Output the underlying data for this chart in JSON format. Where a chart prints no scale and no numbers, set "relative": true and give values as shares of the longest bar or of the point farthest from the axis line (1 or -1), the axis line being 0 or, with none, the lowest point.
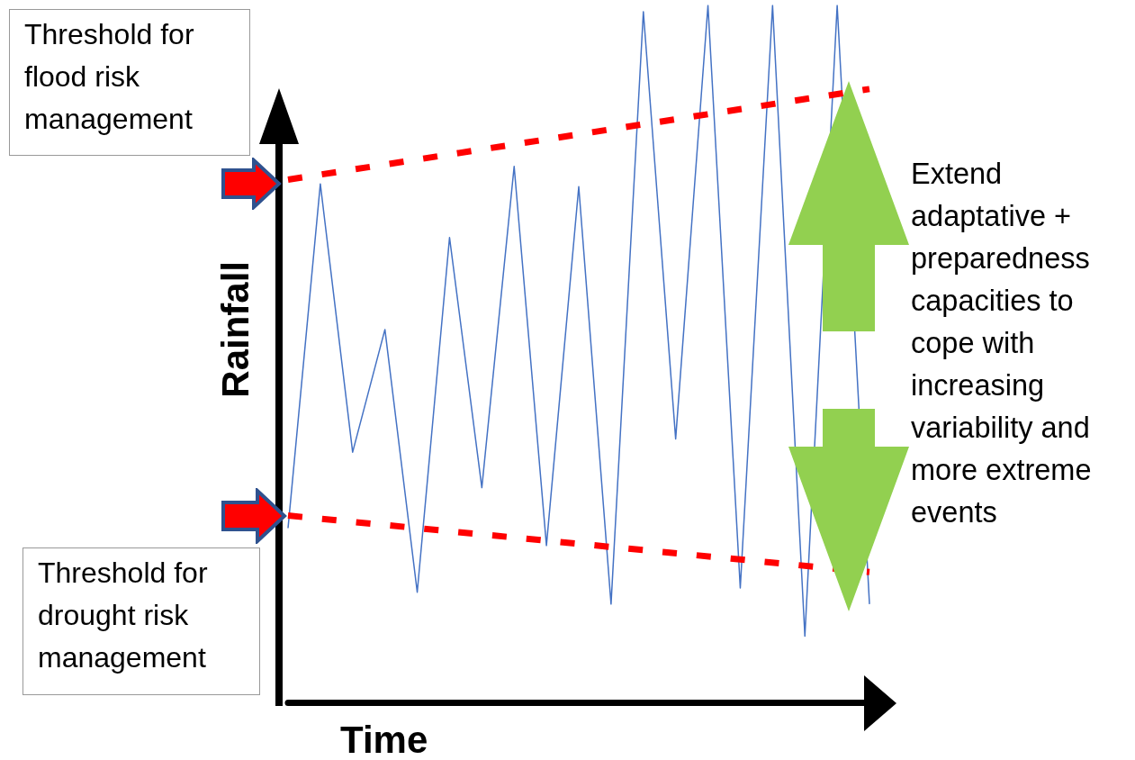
{
  "chart_data": {
    "type": "line",
    "relative": true,
    "xlabel": "Time",
    "ylabel": "Rainfall",
    "marker": "none",
    "categories": [
      null,
      null,
      null,
      null,
      null,
      null,
      null,
      null,
      null,
      null,
      null,
      null,
      null,
      null,
      null,
      null,
      null,
      null,
      null
    ],
    "series": [
      {
        "color": "#4472c4",
        "values": [
          0.25,
          0.744,
          0.359,
          0.535,
          0.158,
          0.667,
          0.308,
          0.769,
          0.225,
          0.74,
          0.141,
          0.991,
          0.378,
          1,
          0.164,
          1,
          0.095,
          1,
          0.141
        ]
      },
      {
        "color": "#ff0000",
        "line_style": "dashed",
        "values": [
          0.75,
          null,
          null,
          null,
          null,
          null,
          null,
          null,
          null,
          null,
          null,
          null,
          null,
          null,
          null,
          null,
          null,
          null,
          0.88
        ]
      },
      {
        "color": "#ff0000",
        "line_style": "dashed",
        "values": [
          0.268,
          null,
          null,
          null,
          null,
          null,
          null,
          null,
          null,
          null,
          null,
          null,
          null,
          null,
          null,
          null,
          null,
          null,
          0.187
        ]
      }
    ],
    "annotations": [
      "Threshold for flood risk management",
      "Threshold for drought risk management",
      "Extend adaptative + preparedness capacities to cope with increasing variability and more extreme events"
    ]
  }
}
